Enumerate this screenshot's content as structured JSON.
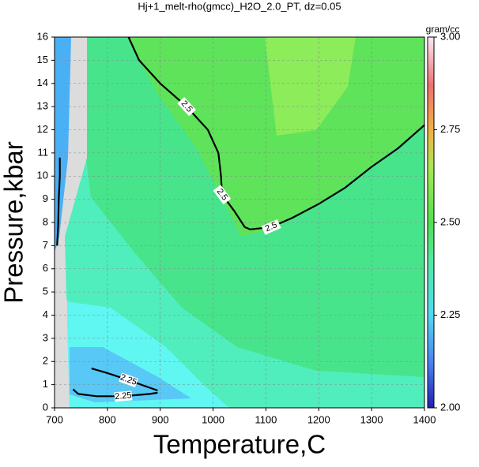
{
  "chart_data": {
    "type": "contour",
    "title": "Hj+1_melt-rho(gmcc)_H2O_2.0_PT, dz=0.05",
    "x_label": "Temperature,C",
    "y_label": "Pressure,kbar",
    "xlim": [
      700,
      1400
    ],
    "xticks": [
      700,
      800,
      900,
      1000,
      1100,
      1200,
      1300,
      1400
    ],
    "ylim": [
      0,
      16
    ],
    "yticks": [
      0,
      1,
      2,
      3,
      4,
      5,
      6,
      7,
      8,
      9,
      10,
      11,
      12,
      13,
      14,
      15,
      16
    ],
    "grid": true,
    "contours": [
      {
        "level": 2.5,
        "x": [
          840,
          860,
          900,
          950,
          990,
          1010,
          1015,
          1017,
          1040,
          1060,
          1070,
          1110,
          1150,
          1200,
          1250,
          1300,
          1350,
          1400
        ],
        "y": [
          16,
          15,
          14,
          13,
          12,
          11,
          10,
          9.2,
          8.5,
          7.8,
          7.7,
          7.8,
          8.2,
          8.8,
          9.5,
          10.4,
          11.2,
          12.2
        ]
      },
      {
        "level": 2.25,
        "x": [
          705,
          707,
          708,
          710,
          710,
          null,
          770,
          800,
          840,
          870,
          895,
          null,
          735,
          745,
          780,
          830,
          880,
          895
        ],
        "y": [
          7,
          8,
          9,
          10,
          10.8,
          null,
          1.7,
          1.5,
          1.2,
          0.95,
          0.75,
          null,
          0.8,
          0.6,
          0.5,
          0.5,
          0.6,
          0.65
        ]
      }
    ],
    "colorbar": {
      "label": "gram/cc",
      "lim": [
        2,
        3
      ],
      "ticks": [
        {
          "value": 2,
          "label": "2.00"
        },
        {
          "value": 2.25,
          "label": "2.25"
        },
        {
          "value": 2.5,
          "label": "2.50"
        },
        {
          "value": 2.75,
          "label": "2.75"
        },
        {
          "value": 3,
          "label": "3.00"
        }
      ]
    }
  }
}
